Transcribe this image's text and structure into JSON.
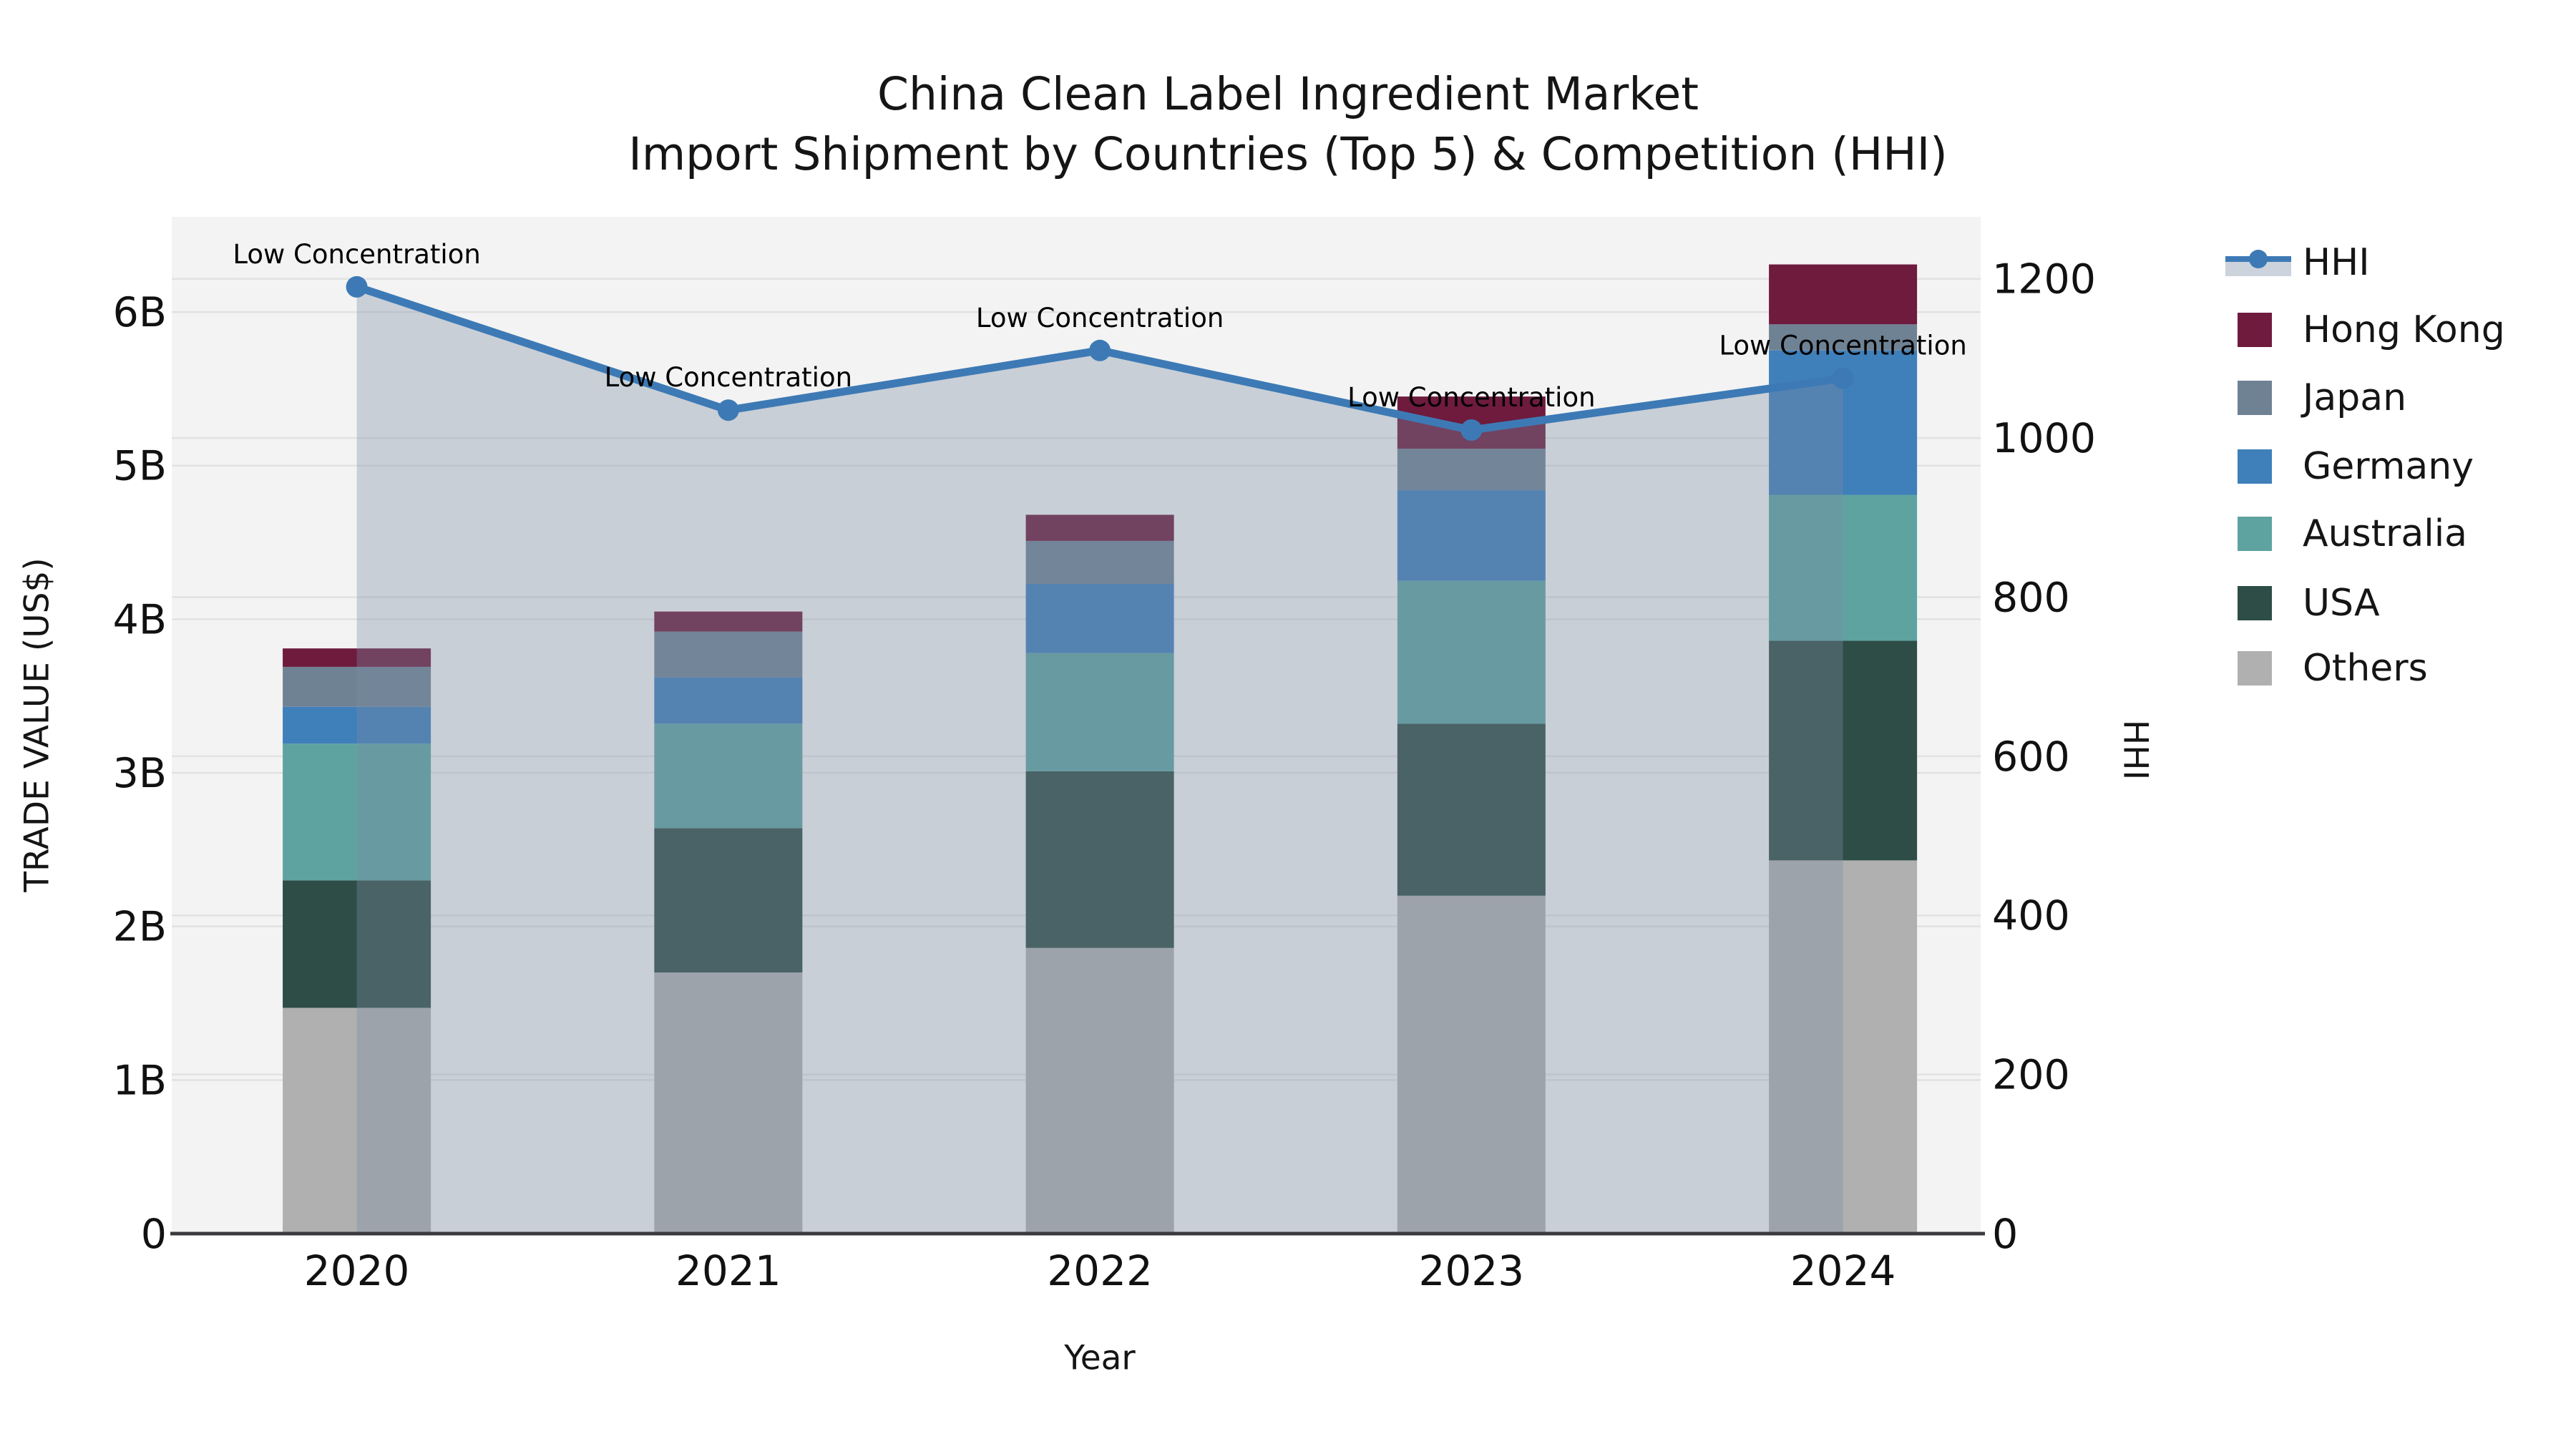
{
  "title": {
    "line1": "China Clean Label Ingredient Market",
    "line2": "Import Shipment by Countries (Top 5) & Competition (HHI)"
  },
  "axes": {
    "left": {
      "title": "TRADE VALUE (US$)",
      "tick_labels": [
        "0",
        "1B",
        "2B",
        "3B",
        "4B",
        "5B",
        "6B"
      ],
      "tick_values": [
        0,
        1,
        2,
        3,
        4,
        5,
        6
      ]
    },
    "right": {
      "title": "HHI",
      "tick_labels": [
        "0",
        "200",
        "400",
        "600",
        "800",
        "1000",
        "1200"
      ],
      "tick_values": [
        0,
        200,
        400,
        600,
        800,
        1000,
        1200
      ]
    },
    "x": {
      "title": "Year",
      "tick_labels": [
        "2020",
        "2021",
        "2022",
        "2023",
        "2024"
      ]
    }
  },
  "legend": {
    "items": [
      {
        "label": "HHI",
        "type": "line",
        "color": "#3d7ab5",
        "band_color": "#ccd3dc"
      },
      {
        "label": "Hong Kong",
        "type": "swatch",
        "color": "#6e1b3e"
      },
      {
        "label": "Japan",
        "type": "swatch",
        "color": "#6f8294"
      },
      {
        "label": "Germany",
        "type": "swatch",
        "color": "#3f7fba"
      },
      {
        "label": "Australia",
        "type": "swatch",
        "color": "#5ea3a0"
      },
      {
        "label": "USA",
        "type": "swatch",
        "color": "#2e4d47"
      },
      {
        "label": "Others",
        "type": "swatch",
        "color": "#b0b0b0"
      }
    ]
  },
  "chart_data": {
    "type": "combo: stacked bar (left axis, trade value) + line with area fill (right axis, HHI)",
    "title": "China Clean Label Ingredient Market — Import Shipment by Countries (Top 5) & Competition (HHI)",
    "categories": [
      "2020",
      "2021",
      "2022",
      "2023",
      "2024"
    ],
    "bar_unit": "billion US$",
    "stack_order_bottom_to_top": [
      "Others",
      "USA",
      "Australia",
      "Germany",
      "Japan",
      "Hong Kong"
    ],
    "series": [
      {
        "name": "Others",
        "color": "#b0b0b0",
        "values": [
          1.47,
          1.7,
          1.86,
          2.2,
          2.43
        ]
      },
      {
        "name": "USA",
        "color": "#2e4d47",
        "values": [
          0.83,
          0.94,
          1.15,
          1.12,
          1.43
        ]
      },
      {
        "name": "Australia",
        "color": "#5ea3a0",
        "values": [
          0.89,
          0.68,
          0.77,
          0.93,
          0.95
        ]
      },
      {
        "name": "Germany",
        "color": "#3f7fba",
        "values": [
          0.24,
          0.3,
          0.45,
          0.59,
          0.94
        ]
      },
      {
        "name": "Japan",
        "color": "#6f8294",
        "values": [
          0.26,
          0.3,
          0.28,
          0.27,
          0.17
        ]
      },
      {
        "name": "Hong Kong",
        "color": "#6e1b3e",
        "values": [
          0.12,
          0.13,
          0.17,
          0.34,
          0.39
        ]
      }
    ],
    "bar_totals": [
      3.81,
      4.05,
      4.68,
      5.45,
      6.31
    ],
    "line_series": {
      "name": "HHI",
      "axis": "right",
      "values": [
        1190,
        1035,
        1110,
        1010,
        1075
      ],
      "color": "#3d7ab5",
      "marker": "circle",
      "area_fill": "rgba(122,139,164,0.35)"
    },
    "point_annotations": [
      "Low Concentration",
      "Low Concentration",
      "Low Concentration",
      "Low Concentration",
      "Low Concentration"
    ],
    "xlabel": "Year",
    "ylabel_left": "TRADE VALUE (US$)",
    "ylabel_right": "HHI",
    "ylim_left": [
      0,
      6.62
    ],
    "ylim_right": [
      0,
      1278
    ],
    "grid": true,
    "legend_position": "right-outside",
    "plot_bg": "#f3f3f3",
    "grid_color": "#e2e2e2",
    "axis_line_color": "#3a3a3e"
  }
}
